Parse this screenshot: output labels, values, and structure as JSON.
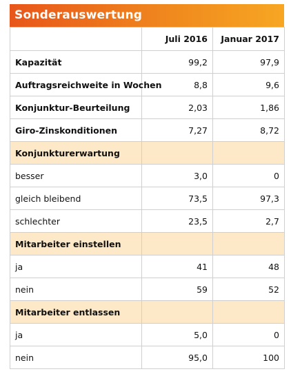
{
  "title": "Sonderauswertung",
  "columns": [
    "",
    "Juli 2016",
    "Januar 2017"
  ],
  "rows": [
    {
      "label": "Kapazität",
      "v1": "99,2",
      "v2": "97,9",
      "kind": "bold"
    },
    {
      "label": "Auftragsreichweite in Wochen",
      "v1": "8,8",
      "v2": "9,6",
      "kind": "bold"
    },
    {
      "label": "Konjunktur-Beurteilung",
      "v1": "2,03",
      "v2": "1,86",
      "kind": "bold"
    },
    {
      "label": "Giro-Zinskonditionen",
      "v1": "7,27",
      "v2": "8,72",
      "kind": "bold"
    },
    {
      "label": "Konjunkturerwartung",
      "v1": "",
      "v2": "",
      "kind": "section"
    },
    {
      "label": "besser",
      "v1": "3,0",
      "v2": "0",
      "kind": "normal"
    },
    {
      "label": "gleich bleibend",
      "v1": "73,5",
      "v2": "97,3",
      "kind": "normal"
    },
    {
      "label": "schlechter",
      "v1": "23,5",
      "v2": "2,7",
      "kind": "normal"
    },
    {
      "label": "Mitarbeiter einstellen",
      "v1": "",
      "v2": "",
      "kind": "section"
    },
    {
      "label": "ja",
      "v1": "41",
      "v2": "48",
      "kind": "normal"
    },
    {
      "label": "nein",
      "v1": "59",
      "v2": "52",
      "kind": "normal"
    },
    {
      "label": "Mitarbeiter entlassen",
      "v1": "",
      "v2": "",
      "kind": "section"
    },
    {
      "label": "ja",
      "v1": "5,0",
      "v2": "0",
      "kind": "normal"
    },
    {
      "label": "nein",
      "v1": "95,0",
      "v2": "100",
      "kind": "normal"
    }
  ]
}
